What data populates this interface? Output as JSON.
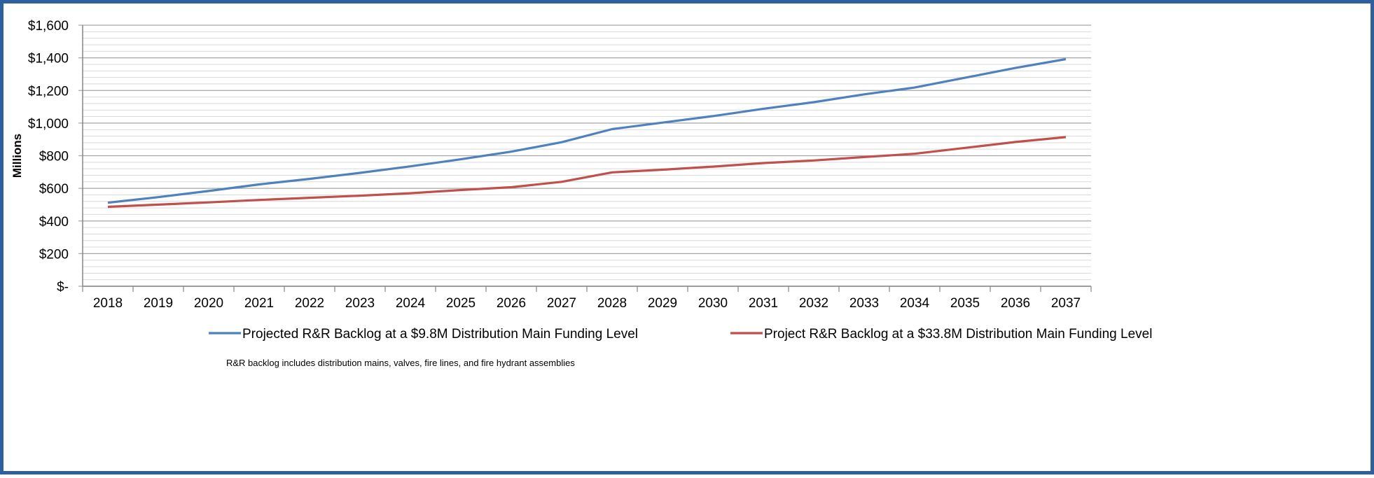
{
  "chart_data": {
    "type": "line",
    "title": "",
    "xlabel": "",
    "ylabel": "Millions",
    "x": [
      "2018",
      "2019",
      "2020",
      "2021",
      "2022",
      "2023",
      "2024",
      "2025",
      "2026",
      "2027",
      "2028",
      "2029",
      "2030",
      "2031",
      "2032",
      "2033",
      "2034",
      "2035",
      "2036",
      "2037"
    ],
    "ylim": [
      0,
      1600
    ],
    "ytick_values": [
      0,
      200,
      400,
      600,
      800,
      1000,
      1200,
      1400,
      1600
    ],
    "ytick_labels": [
      "$-",
      "$200",
      "$400",
      "$600",
      "$800",
      "$1,000",
      "$1,200",
      "$1,400",
      "$1,600"
    ],
    "grid": true,
    "legend_position": "bottom",
    "series": [
      {
        "name": "Projected R&R Backlog at a $9.8M Distribution Main Funding Level",
        "color": "#4f81bd",
        "values": [
          512,
          546,
          584,
          624,
          658,
          695,
          735,
          778,
          825,
          883,
          963,
          1003,
          1043,
          1088,
          1128,
          1176,
          1218,
          1278,
          1338,
          1392
        ]
      },
      {
        "name": "Project R&R Backlog at a $33.8M Distribution Main Funding Level",
        "color": "#c0504d",
        "values": [
          487,
          500,
          514,
          529,
          542,
          555,
          570,
          590,
          607,
          640,
          698,
          714,
          733,
          755,
          771,
          792,
          812,
          848,
          884,
          914
        ]
      }
    ],
    "annotations": [
      "R&R backlog includes distribution mains, valves, fire lines, and fire hydrant assemblies"
    ]
  }
}
